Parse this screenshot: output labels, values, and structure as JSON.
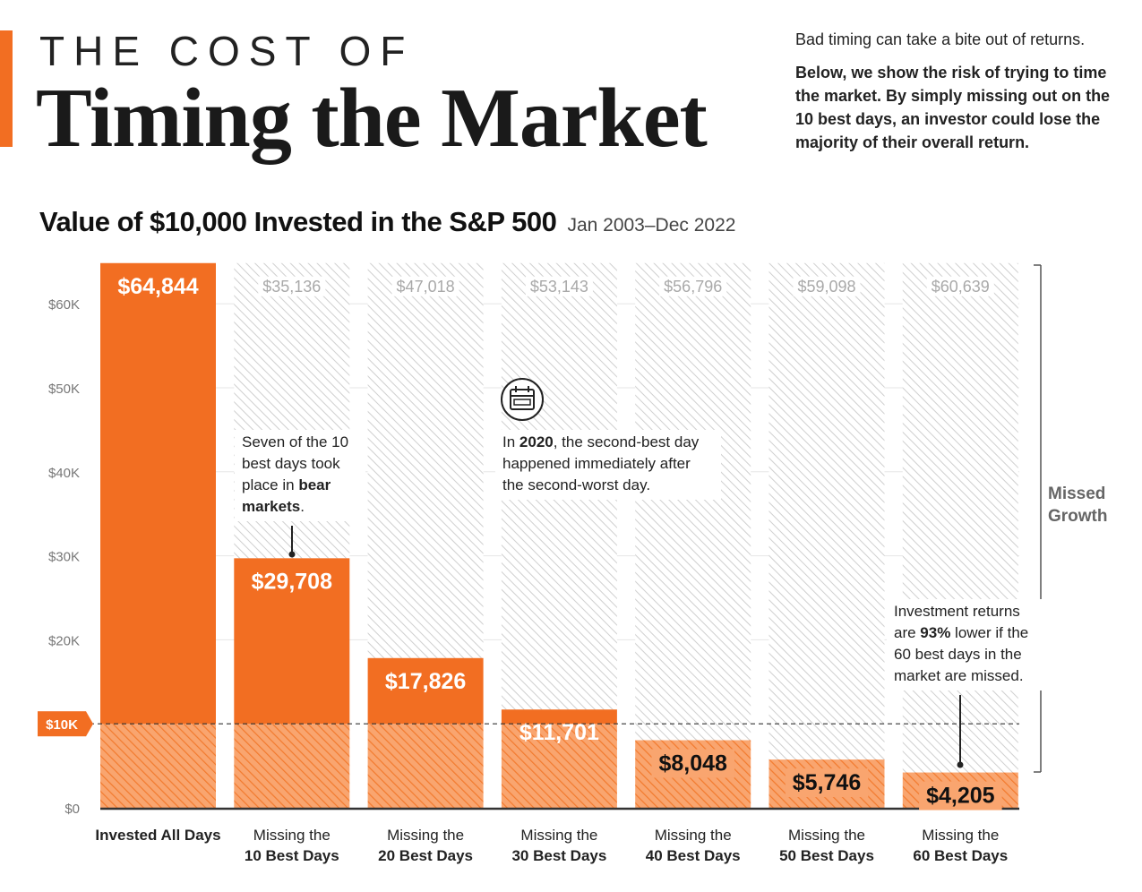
{
  "header": {
    "kicker": "THE COST OF",
    "headline": "Timing the Market",
    "intro_lead": "Bad timing can take a bite out of returns.",
    "intro_body": "Below, we show the risk of trying to time the market. By simply missing out on the 10 best days, an investor could lose the majority of their overall return."
  },
  "annotations": {
    "bear": {
      "pre": "Seven of the 10 best days took place in ",
      "bold": "bear markets",
      "post": "."
    },
    "covid": {
      "pre": "In ",
      "bold": "2020",
      "post": ", the second-best day happened immediately after the second-worst day."
    },
    "pct": {
      "pre": "Investment returns are ",
      "bold": "93%",
      "post": " lower if the 60 best days in the market are missed."
    },
    "missed_growth": "Missed Growth"
  },
  "icons": {
    "calendar": "calendar-icon"
  },
  "colors": {
    "accent": "#f26e22",
    "accent_light": "#f7a06a",
    "hatch": "#cfcfcf",
    "ink": "#1a1a1a"
  },
  "chart_data": {
    "type": "bar",
    "title": "Value of $10,000 Invested in the S&P 500",
    "subtitle": "Jan 2003–Dec 2022",
    "categories": [
      [
        "Invested All Days",
        ""
      ],
      [
        "Missing the",
        "10 Best Days"
      ],
      [
        "Missing the",
        "20 Best Days"
      ],
      [
        "Missing the",
        "30 Best Days"
      ],
      [
        "Missing the",
        "40 Best Days"
      ],
      [
        "Missing the",
        "50 Best Days"
      ],
      [
        "Missing the",
        "60 Best Days"
      ]
    ],
    "series": [
      {
        "values": [
          64844,
          29708,
          17826,
          11701,
          8048,
          5746,
          4205
        ],
        "labels": [
          "$64,844",
          "$29,708",
          "$17,826",
          "$11,701",
          "$8,048",
          "$5,746",
          "$4,205"
        ]
      },
      {
        "name": "Missed Growth",
        "values": [
          null,
          35136,
          47018,
          53143,
          56796,
          59098,
          60639
        ],
        "labels": [
          "",
          "$35,136",
          "$47,018",
          "$53,143",
          "$56,796",
          "$59,098",
          "$60,639"
        ]
      }
    ],
    "yticks": [
      0,
      10000,
      20000,
      30000,
      40000,
      50000,
      60000
    ],
    "ytick_labels": [
      "$0",
      "$10K",
      "$20K",
      "$30K",
      "$40K",
      "$50K",
      "$60K"
    ],
    "reference_line": {
      "value": 10000,
      "label": "$10K"
    },
    "ylim": [
      0,
      64844
    ],
    "grid": true
  }
}
